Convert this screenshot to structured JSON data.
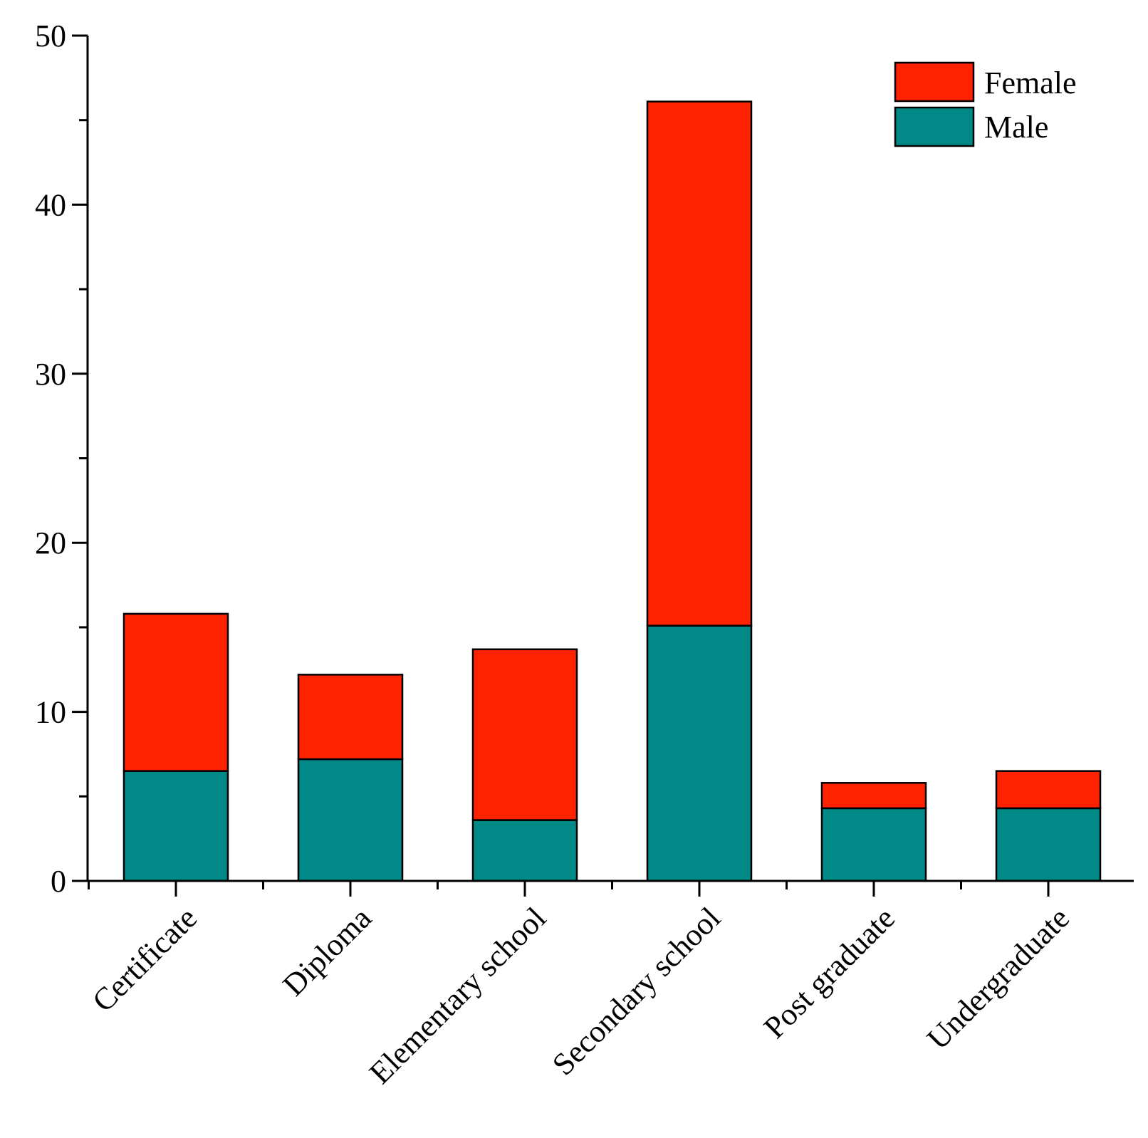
{
  "chart_data": {
    "type": "bar",
    "stacked": true,
    "title": "",
    "xlabel": "",
    "ylabel": "",
    "ylim": [
      0,
      50
    ],
    "yticks": [
      0,
      10,
      20,
      30,
      40,
      50
    ],
    "yminor_step": 5,
    "categories": [
      "Certificate",
      "Diploma",
      "Elementary school",
      "Secondary school",
      "Post graduate",
      "Undergraduate"
    ],
    "series": [
      {
        "name": "Male",
        "color": "#008986",
        "values": [
          6.5,
          7.2,
          3.6,
          15.1,
          4.3,
          4.3
        ]
      },
      {
        "name": "Female",
        "color": "#ff2200",
        "values": [
          9.3,
          5.0,
          10.1,
          31.0,
          1.5,
          2.2
        ]
      }
    ],
    "legend": {
      "position": "top-right",
      "entries": [
        {
          "label": "Female",
          "color": "#ff2200"
        },
        {
          "label": "Male",
          "color": "#008986"
        }
      ]
    },
    "grid": false
  }
}
